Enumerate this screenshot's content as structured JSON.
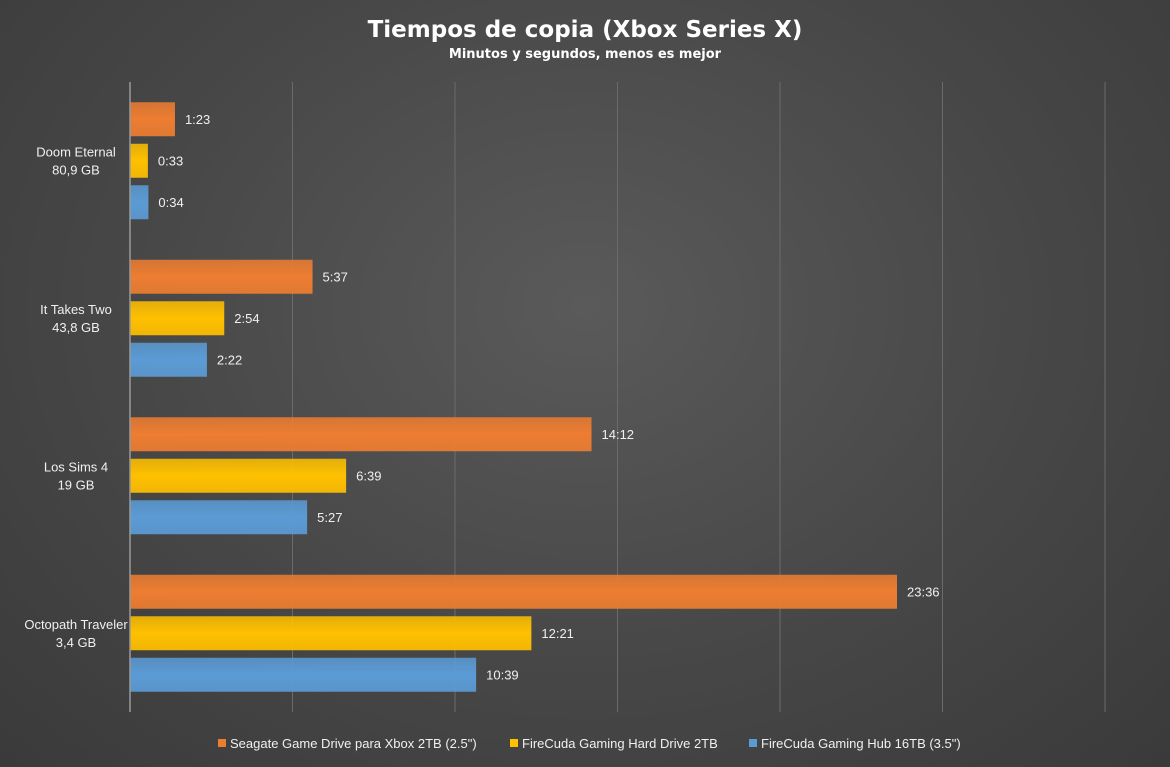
{
  "chart_data": {
    "type": "bar",
    "orientation": "horizontal",
    "title": "Tiempos de copia (Xbox Series X)",
    "subtitle": "Minutos y segundos, menos es mejor",
    "categories": [
      [
        "Doom Eternal",
        "80,9 GB"
      ],
      [
        "It Takes Two",
        "43,8 GB"
      ],
      [
        "Los Sims 4",
        "19 GB"
      ],
      [
        "Octopath Traveler",
        "3,4 GB"
      ]
    ],
    "series": [
      {
        "name": "Seagate Game Drive para Xbox 2TB (2.5\")",
        "color": "#ed7d31",
        "values": [
          83,
          337,
          852,
          1416
        ],
        "labels": [
          "1:23",
          "5:37",
          "14:12",
          "23:36"
        ]
      },
      {
        "name": "FireCuda Gaming Hard Drive 2TB",
        "color": "#ffc000",
        "values": [
          33,
          174,
          399,
          741
        ],
        "labels": [
          "0:33",
          "2:54",
          "6:39",
          "12:21"
        ]
      },
      {
        "name": "FireCuda Gaming Hub 16TB (3.5\")",
        "color": "#5b9bd5",
        "values": [
          34,
          142,
          327,
          639
        ],
        "labels": [
          "0:34",
          "2:22",
          "5:27",
          "10:39"
        ]
      }
    ],
    "xlim": [
      0,
      1800
    ],
    "grid": true,
    "legend": "bottom"
  }
}
